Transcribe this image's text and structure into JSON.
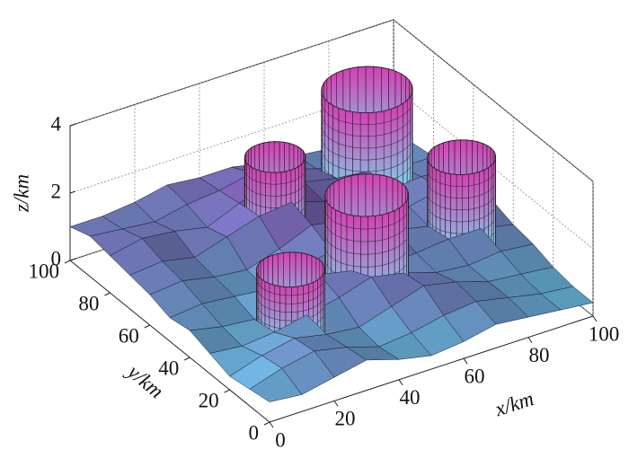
{
  "chart_data": {
    "type": "surface3d",
    "xlabel": "x/km",
    "ylabel": "y/km",
    "zlabel": "z/km",
    "xlim": [
      0,
      100
    ],
    "ylim": [
      0,
      100
    ],
    "zlim": [
      0,
      4
    ],
    "xticks": [
      0,
      20,
      40,
      60,
      80,
      100
    ],
    "yticks": [
      0,
      20,
      40,
      60,
      80,
      100
    ],
    "zticks": [
      0,
      2,
      4
    ],
    "grid": true,
    "x": [
      0,
      10,
      20,
      30,
      40,
      50,
      60,
      70,
      80,
      90,
      100
    ],
    "y": [
      0,
      10,
      20,
      30,
      40,
      50,
      60,
      70,
      80,
      90,
      100
    ],
    "z": [
      [
        0.6,
        0.5,
        0.7,
        0.9,
        0.6,
        0.4,
        0.5,
        0.7,
        0.6,
        0.5,
        0.4
      ],
      [
        0.5,
        0.8,
        1.0,
        0.8,
        0.5,
        0.6,
        0.8,
        0.9,
        0.7,
        0.5,
        0.4
      ],
      [
        0.4,
        0.7,
        0.9,
        0.7,
        0.6,
        0.9,
        1.2,
        1.0,
        0.7,
        0.6,
        0.5
      ],
      [
        0.6,
        0.5,
        0.6,
        0.8,
        1.0,
        1.3,
        1.1,
        0.8,
        0.7,
        0.8,
        0.7
      ],
      [
        0.8,
        0.6,
        0.5,
        0.9,
        1.2,
        1.0,
        0.8,
        0.9,
        1.0,
        1.0,
        0.8
      ],
      [
        0.7,
        0.8,
        0.7,
        0.6,
        0.9,
        1.1,
        1.3,
        1.1,
        0.9,
        1.1,
        1.0
      ],
      [
        0.9,
        1.0,
        0.8,
        0.7,
        1.0,
        1.4,
        1.2,
        0.9,
        1.0,
        1.2,
        1.1
      ],
      [
        1.0,
        1.1,
        0.9,
        1.2,
        1.5,
        1.6,
        1.3,
        1.1,
        1.0,
        1.1,
        1.0
      ],
      [
        1.1,
        1.3,
        1.2,
        1.0,
        1.4,
        1.7,
        1.4,
        1.2,
        1.1,
        0.9,
        0.9
      ],
      [
        1.2,
        1.1,
        1.0,
        1.2,
        1.3,
        1.5,
        1.3,
        1.0,
        0.8,
        0.8,
        0.8
      ],
      [
        1.0,
        1.0,
        1.1,
        1.3,
        1.2,
        1.2,
        1.0,
        0.9,
        0.8,
        0.7,
        0.7
      ]
    ],
    "colors": {
      "low": "#5fd8ea",
      "high": "#7a52a8",
      "cylinder_top": "#d440b4",
      "cylinder_bottom": "#74e4f4"
    },
    "cylinders": [
      {
        "x": 25,
        "y": 30,
        "r": 9,
        "z0": 0.3,
        "z1": 2.3
      },
      {
        "x": 51,
        "y": 34,
        "r": 11,
        "z0": 0.5,
        "z1": 3.5
      },
      {
        "x": 43,
        "y": 67,
        "r": 8,
        "z0": 0.5,
        "z1": 3.3
      },
      {
        "x": 77,
        "y": 76,
        "r": 12,
        "z0": 1.0,
        "z1": 3.8
      },
      {
        "x": 84,
        "y": 40,
        "r": 9,
        "z0": 0.5,
        "z1": 3.3
      }
    ]
  }
}
